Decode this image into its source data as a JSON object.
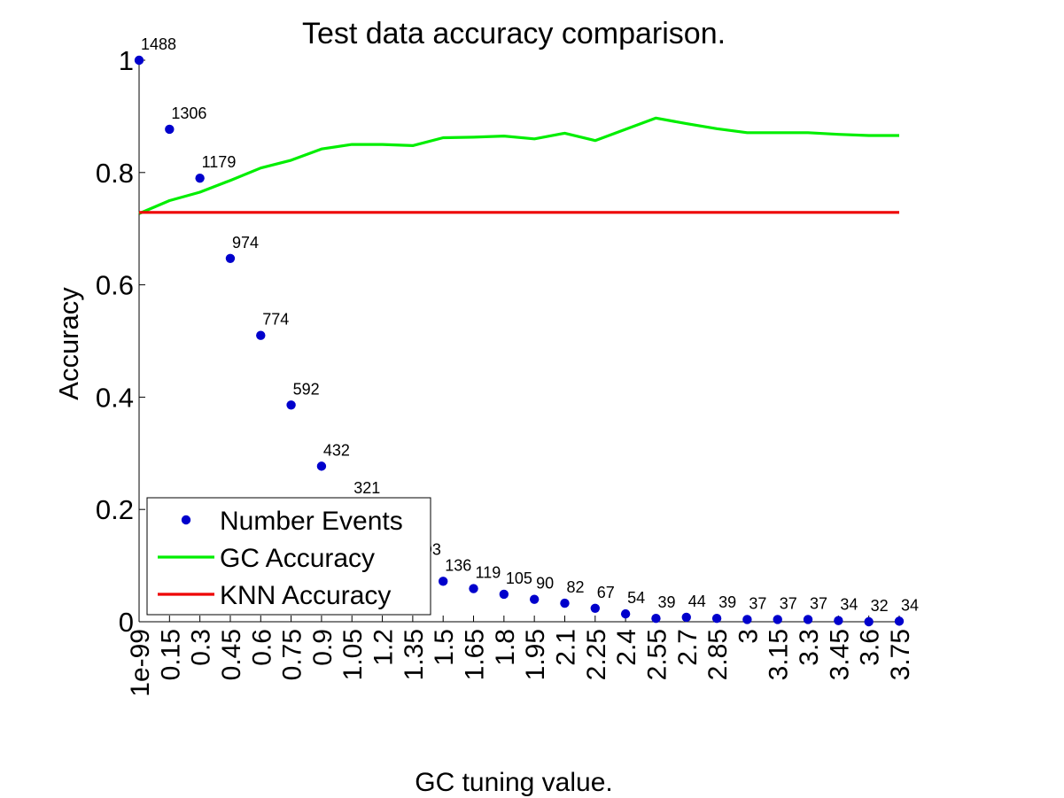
{
  "chart_data": {
    "type": "line",
    "title": "Test data accuracy comparison.",
    "xlabel": "GC tuning value.",
    "ylabel": "Accuracy",
    "ylim": [
      0,
      1
    ],
    "yticks": [
      "0",
      "0.2",
      "0.4",
      "0.6",
      "0.8",
      "1"
    ],
    "categories": [
      "1e-99",
      "0.15",
      "0.3",
      "0.45",
      "0.6",
      "0.75",
      "0.9",
      "1.05",
      "1.2",
      "1.35",
      "1.5",
      "1.65",
      "1.8",
      "1.95",
      "2.1",
      "2.25",
      "2.4",
      "2.55",
      "2.7",
      "2.85",
      "3",
      "3.15",
      "3.3",
      "3.45",
      "3.6",
      "3.75"
    ],
    "series": [
      {
        "name": "Number Events",
        "style": "markers",
        "color": "#0000cc",
        "values": [
          1.0,
          0.877,
          0.79,
          0.647,
          0.51,
          0.386,
          0.277,
          0.21,
          0.15,
          0.1,
          0.072,
          0.059,
          0.049,
          0.04,
          0.033,
          0.024,
          0.014,
          0.006,
          0.008,
          0.006,
          0.004,
          0.004,
          0.004,
          0.002,
          0.0,
          0.001
        ],
        "point_labels": [
          "1488",
          "1306",
          "1179",
          "974",
          "774",
          "592",
          "432",
          "321",
          "",
          "193",
          "136",
          "119",
          "105",
          "90",
          "82",
          "67",
          "54",
          "39",
          "44",
          "39",
          "37",
          "37",
          "37",
          "34",
          "32",
          "34"
        ]
      },
      {
        "name": "GC Accuracy",
        "style": "line",
        "color": "#00ee00",
        "values": [
          0.727,
          0.75,
          0.765,
          0.786,
          0.808,
          0.822,
          0.842,
          0.85,
          0.85,
          0.848,
          0.862,
          0.863,
          0.865,
          0.86,
          0.87,
          0.857,
          0.877,
          0.897,
          0.887,
          0.878,
          0.871,
          0.871,
          0.871,
          0.868,
          0.866,
          0.866
        ]
      },
      {
        "name": "KNN Accuracy",
        "style": "line",
        "color": "#ee0000",
        "values": [
          0.729,
          0.729,
          0.729,
          0.729,
          0.729,
          0.729,
          0.729,
          0.729,
          0.729,
          0.729,
          0.729,
          0.729,
          0.729,
          0.729,
          0.729,
          0.729,
          0.729,
          0.729,
          0.729,
          0.729,
          0.729,
          0.729,
          0.729,
          0.729,
          0.729,
          0.729
        ]
      }
    ],
    "legend": {
      "position": "lower-left",
      "entries": [
        "Number Events",
        "GC Accuracy",
        "KNN Accuracy"
      ]
    },
    "grid": false
  }
}
